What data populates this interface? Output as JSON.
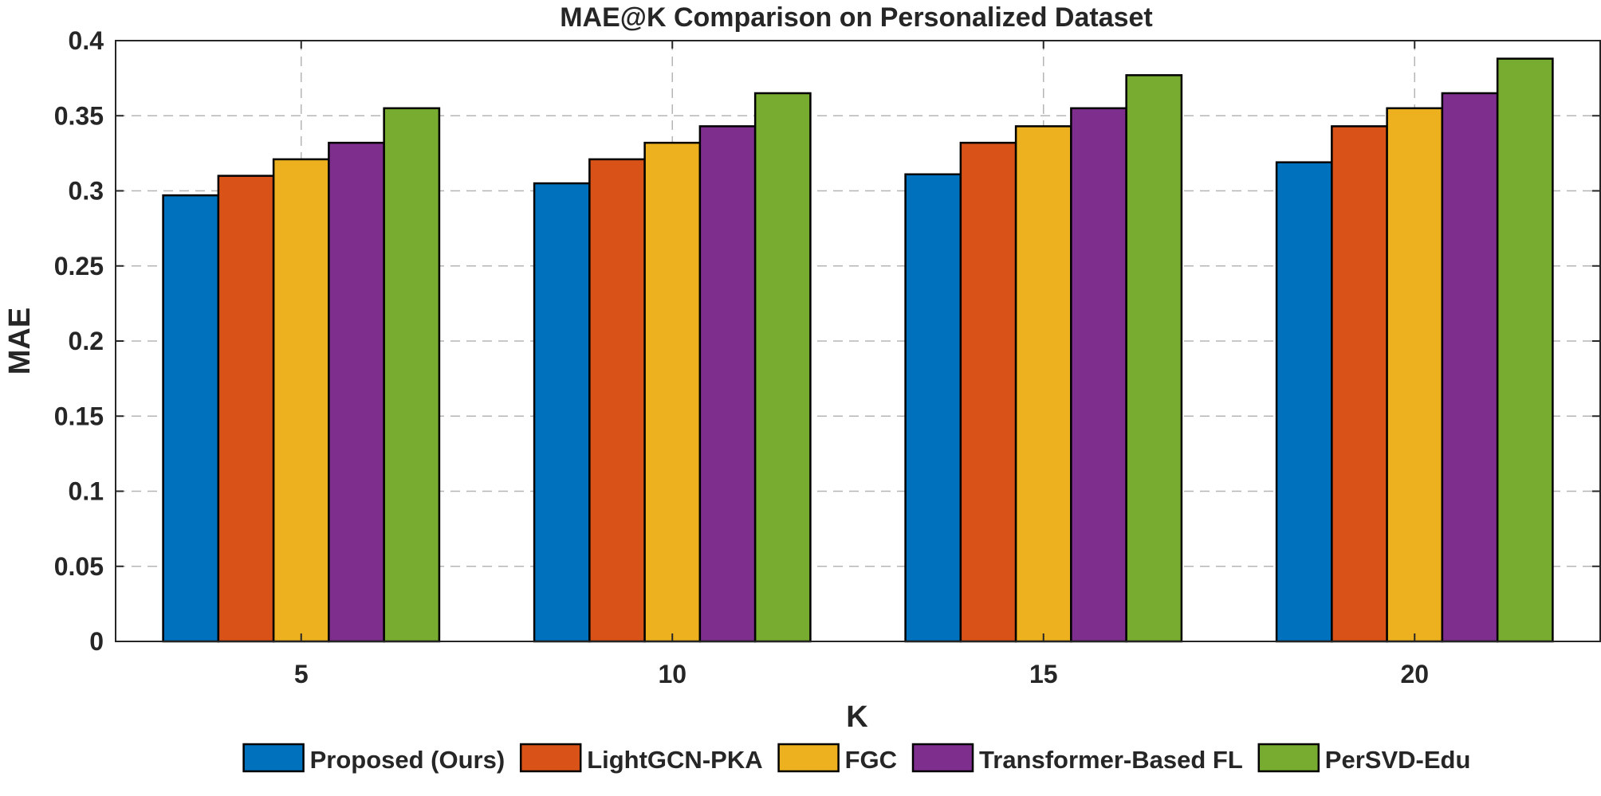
{
  "chart_data": {
    "type": "bar",
    "title": "MAE@K Comparison on Personalized Dataset",
    "xlabel": "K",
    "ylabel": "MAE",
    "categories": [
      "5",
      "10",
      "15",
      "20"
    ],
    "ylim": [
      0,
      0.4
    ],
    "yticks": [
      0,
      0.05,
      0.1,
      0.15,
      0.2,
      0.25,
      0.3,
      0.35,
      0.4
    ],
    "ytick_labels": [
      "0",
      "0.05",
      "0.1",
      "0.15",
      "0.2",
      "0.25",
      "0.3",
      "0.35",
      "0.4"
    ],
    "grid": true,
    "legend_position": "bottom",
    "series": [
      {
        "name": "Proposed (Ours)",
        "color": "#0072BD",
        "values": [
          0.297,
          0.305,
          0.311,
          0.319
        ]
      },
      {
        "name": "LightGCN-PKA",
        "color": "#D95319",
        "values": [
          0.31,
          0.321,
          0.332,
          0.343
        ]
      },
      {
        "name": "FGC",
        "color": "#EDB120",
        "values": [
          0.321,
          0.332,
          0.343,
          0.355
        ]
      },
      {
        "name": "Transformer-Based FL",
        "color": "#7E2F8E",
        "values": [
          0.332,
          0.343,
          0.355,
          0.365
        ]
      },
      {
        "name": "PerSVD-Edu",
        "color": "#77AC30",
        "values": [
          0.355,
          0.365,
          0.377,
          0.388
        ]
      }
    ]
  }
}
